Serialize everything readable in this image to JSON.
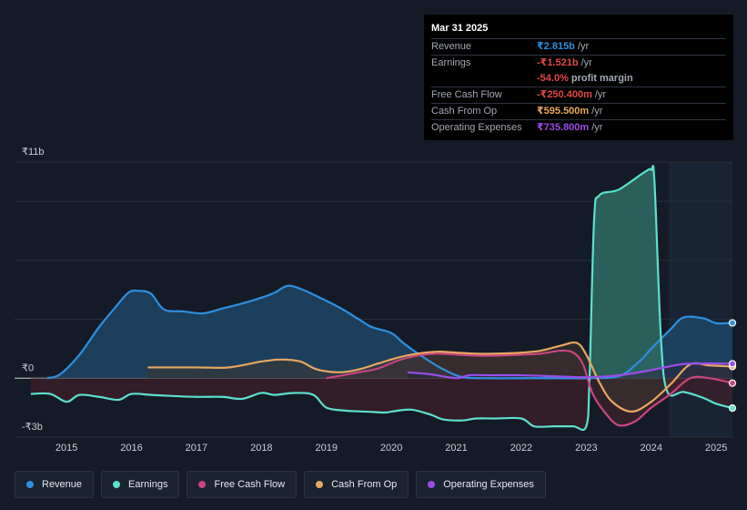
{
  "tooltip": {
    "date": "Mar 31 2025",
    "rows": [
      {
        "label": "Revenue",
        "value": "₹2.815b",
        "unit": "/yr",
        "color": "#2d8fe0"
      },
      {
        "label": "Earnings",
        "value": "-₹1.521b",
        "unit": "/yr",
        "color": "#e04848"
      },
      {
        "label": "",
        "value": "-54.0%",
        "unit": "profit margin",
        "color": "#e04848"
      },
      {
        "label": "Free Cash Flow",
        "value": "-₹250.400m",
        "unit": "/yr",
        "color": "#e04848"
      },
      {
        "label": "Cash From Op",
        "value": "₹595.500m",
        "unit": "/yr",
        "color": "#e8a860"
      },
      {
        "label": "Operating Expenses",
        "value": "₹735.800m",
        "unit": "/yr",
        "color": "#9b4de8"
      }
    ]
  },
  "legend": [
    {
      "label": "Revenue",
      "color": "#2d8fe0"
    },
    {
      "label": "Earnings",
      "color": "#5ce0cf"
    },
    {
      "label": "Free Cash Flow",
      "color": "#c8457f"
    },
    {
      "label": "Cash From Op",
      "color": "#e8a860"
    },
    {
      "label": "Operating Expenses",
      "color": "#9b4de8"
    }
  ],
  "chart_data": {
    "type": "area",
    "title": "",
    "xlabel": "",
    "ylabel": "",
    "y_unit": "₹ billions",
    "ylim": [
      -3,
      11
    ],
    "xlim": [
      2014.2,
      2025.25
    ],
    "y_ticks": [
      {
        "value": 11,
        "label": "₹11b"
      },
      {
        "value": 0,
        "label": "₹0"
      },
      {
        "value": -3,
        "label": "-₹3b"
      }
    ],
    "x_ticks": [
      2015,
      2016,
      2017,
      2018,
      2019,
      2020,
      2021,
      2022,
      2023,
      2024,
      2025
    ],
    "forecast_start": 2024.25,
    "series": [
      {
        "name": "Revenue",
        "color": "#2d8fe0",
        "points": [
          [
            2014.7,
            0
          ],
          [
            2014.9,
            0.2
          ],
          [
            2015.2,
            1.2
          ],
          [
            2015.5,
            2.6
          ],
          [
            2015.75,
            3.6
          ],
          [
            2015.95,
            4.35
          ],
          [
            2016.1,
            4.45
          ],
          [
            2016.3,
            4.3
          ],
          [
            2016.5,
            3.5
          ],
          [
            2016.8,
            3.4
          ],
          [
            2017.1,
            3.3
          ],
          [
            2017.4,
            3.55
          ],
          [
            2017.7,
            3.8
          ],
          [
            2018.0,
            4.1
          ],
          [
            2018.2,
            4.35
          ],
          [
            2018.4,
            4.7
          ],
          [
            2018.6,
            4.55
          ],
          [
            2018.9,
            4.1
          ],
          [
            2019.2,
            3.6
          ],
          [
            2019.5,
            3.0
          ],
          [
            2019.7,
            2.6
          ],
          [
            2020.0,
            2.3
          ],
          [
            2020.2,
            1.75
          ],
          [
            2020.5,
            1.05
          ],
          [
            2020.8,
            0.45
          ],
          [
            2021.1,
            0.05
          ],
          [
            2021.5,
            0
          ],
          [
            2022.0,
            0
          ],
          [
            2022.5,
            0
          ],
          [
            2023.0,
            0
          ],
          [
            2023.5,
            0.1
          ],
          [
            2023.8,
            0.8
          ],
          [
            2024.0,
            1.5
          ],
          [
            2024.3,
            2.5
          ],
          [
            2024.5,
            3.1
          ],
          [
            2024.8,
            3.05
          ],
          [
            2025.0,
            2.8
          ],
          [
            2025.25,
            2.815
          ]
        ]
      },
      {
        "name": "Earnings",
        "color": "#5ce0cf",
        "points": [
          [
            2014.45,
            -0.8
          ],
          [
            2014.75,
            -0.8
          ],
          [
            2015.0,
            -1.2
          ],
          [
            2015.2,
            -0.85
          ],
          [
            2015.5,
            -0.95
          ],
          [
            2015.8,
            -1.1
          ],
          [
            2016.0,
            -0.8
          ],
          [
            2016.3,
            -0.85
          ],
          [
            2016.6,
            -0.9
          ],
          [
            2017.0,
            -0.95
          ],
          [
            2017.4,
            -0.95
          ],
          [
            2017.7,
            -1.05
          ],
          [
            2018.0,
            -0.75
          ],
          [
            2018.2,
            -0.85
          ],
          [
            2018.5,
            -0.75
          ],
          [
            2018.8,
            -0.85
          ],
          [
            2019.0,
            -1.5
          ],
          [
            2019.3,
            -1.65
          ],
          [
            2019.6,
            -1.7
          ],
          [
            2019.9,
            -1.75
          ],
          [
            2020.0,
            -1.7
          ],
          [
            2020.3,
            -1.6
          ],
          [
            2020.6,
            -1.85
          ],
          [
            2020.8,
            -2.1
          ],
          [
            2021.1,
            -2.15
          ],
          [
            2021.3,
            -2.05
          ],
          [
            2021.6,
            -2.05
          ],
          [
            2022.0,
            -2.05
          ],
          [
            2022.2,
            -2.45
          ],
          [
            2022.5,
            -2.45
          ],
          [
            2022.8,
            -2.45
          ],
          [
            2023.0,
            -2.45
          ],
          [
            2023.05,
            0
          ],
          [
            2023.12,
            8.0
          ],
          [
            2023.2,
            9.3
          ],
          [
            2023.5,
            9.6
          ],
          [
            2023.9,
            10.5
          ],
          [
            2024.0,
            10.6
          ],
          [
            2024.05,
            10.0
          ],
          [
            2024.15,
            2.0
          ],
          [
            2024.25,
            -0.7
          ],
          [
            2024.5,
            -0.7
          ],
          [
            2024.8,
            -1.0
          ],
          [
            2025.0,
            -1.3
          ],
          [
            2025.25,
            -1.521
          ]
        ]
      },
      {
        "name": "Free Cash Flow",
        "color": "#c8457f",
        "points": [
          [
            2019.0,
            0
          ],
          [
            2019.5,
            0.3
          ],
          [
            2019.8,
            0.5
          ],
          [
            2020.1,
            0.9
          ],
          [
            2020.4,
            1.15
          ],
          [
            2020.7,
            1.25
          ],
          [
            2021.0,
            1.2
          ],
          [
            2021.3,
            1.15
          ],
          [
            2021.6,
            1.15
          ],
          [
            2022.0,
            1.2
          ],
          [
            2022.3,
            1.25
          ],
          [
            2022.6,
            1.4
          ],
          [
            2022.8,
            1.3
          ],
          [
            2022.95,
            0.7
          ],
          [
            2023.1,
            -0.8
          ],
          [
            2023.3,
            -1.8
          ],
          [
            2023.5,
            -2.4
          ],
          [
            2023.75,
            -2.2
          ],
          [
            2024.0,
            -1.5
          ],
          [
            2024.3,
            -0.8
          ],
          [
            2024.6,
            0
          ],
          [
            2024.9,
            0
          ],
          [
            2025.25,
            -0.25
          ]
        ]
      },
      {
        "name": "Cash From Op",
        "color": "#e8a860",
        "points": [
          [
            2016.25,
            0.55
          ],
          [
            2017.0,
            0.55
          ],
          [
            2017.5,
            0.55
          ],
          [
            2018.0,
            0.85
          ],
          [
            2018.3,
            0.95
          ],
          [
            2018.6,
            0.85
          ],
          [
            2018.85,
            0.45
          ],
          [
            2019.2,
            0.3
          ],
          [
            2019.5,
            0.45
          ],
          [
            2019.8,
            0.75
          ],
          [
            2020.1,
            1.05
          ],
          [
            2020.4,
            1.25
          ],
          [
            2020.7,
            1.35
          ],
          [
            2021.0,
            1.3
          ],
          [
            2021.3,
            1.25
          ],
          [
            2021.6,
            1.25
          ],
          [
            2022.0,
            1.3
          ],
          [
            2022.3,
            1.4
          ],
          [
            2022.6,
            1.65
          ],
          [
            2022.85,
            1.8
          ],
          [
            2023.0,
            1.2
          ],
          [
            2023.2,
            -0.2
          ],
          [
            2023.4,
            -1.2
          ],
          [
            2023.7,
            -1.7
          ],
          [
            2024.0,
            -1.2
          ],
          [
            2024.3,
            -0.3
          ],
          [
            2024.6,
            0.7
          ],
          [
            2024.9,
            0.65
          ],
          [
            2025.25,
            0.5955
          ]
        ]
      },
      {
        "name": "Operating Expenses",
        "color": "#9b4de8",
        "points": [
          [
            2020.25,
            0.3
          ],
          [
            2020.6,
            0.2
          ],
          [
            2021.0,
            0.0
          ],
          [
            2021.2,
            0.15
          ],
          [
            2021.6,
            0.15
          ],
          [
            2022.0,
            0.15
          ],
          [
            2022.5,
            0.1
          ],
          [
            2023.0,
            0.05
          ],
          [
            2023.5,
            0.15
          ],
          [
            2023.9,
            0.35
          ],
          [
            2024.2,
            0.55
          ],
          [
            2024.5,
            0.72
          ],
          [
            2024.9,
            0.75
          ],
          [
            2025.25,
            0.7358
          ]
        ]
      }
    ]
  }
}
